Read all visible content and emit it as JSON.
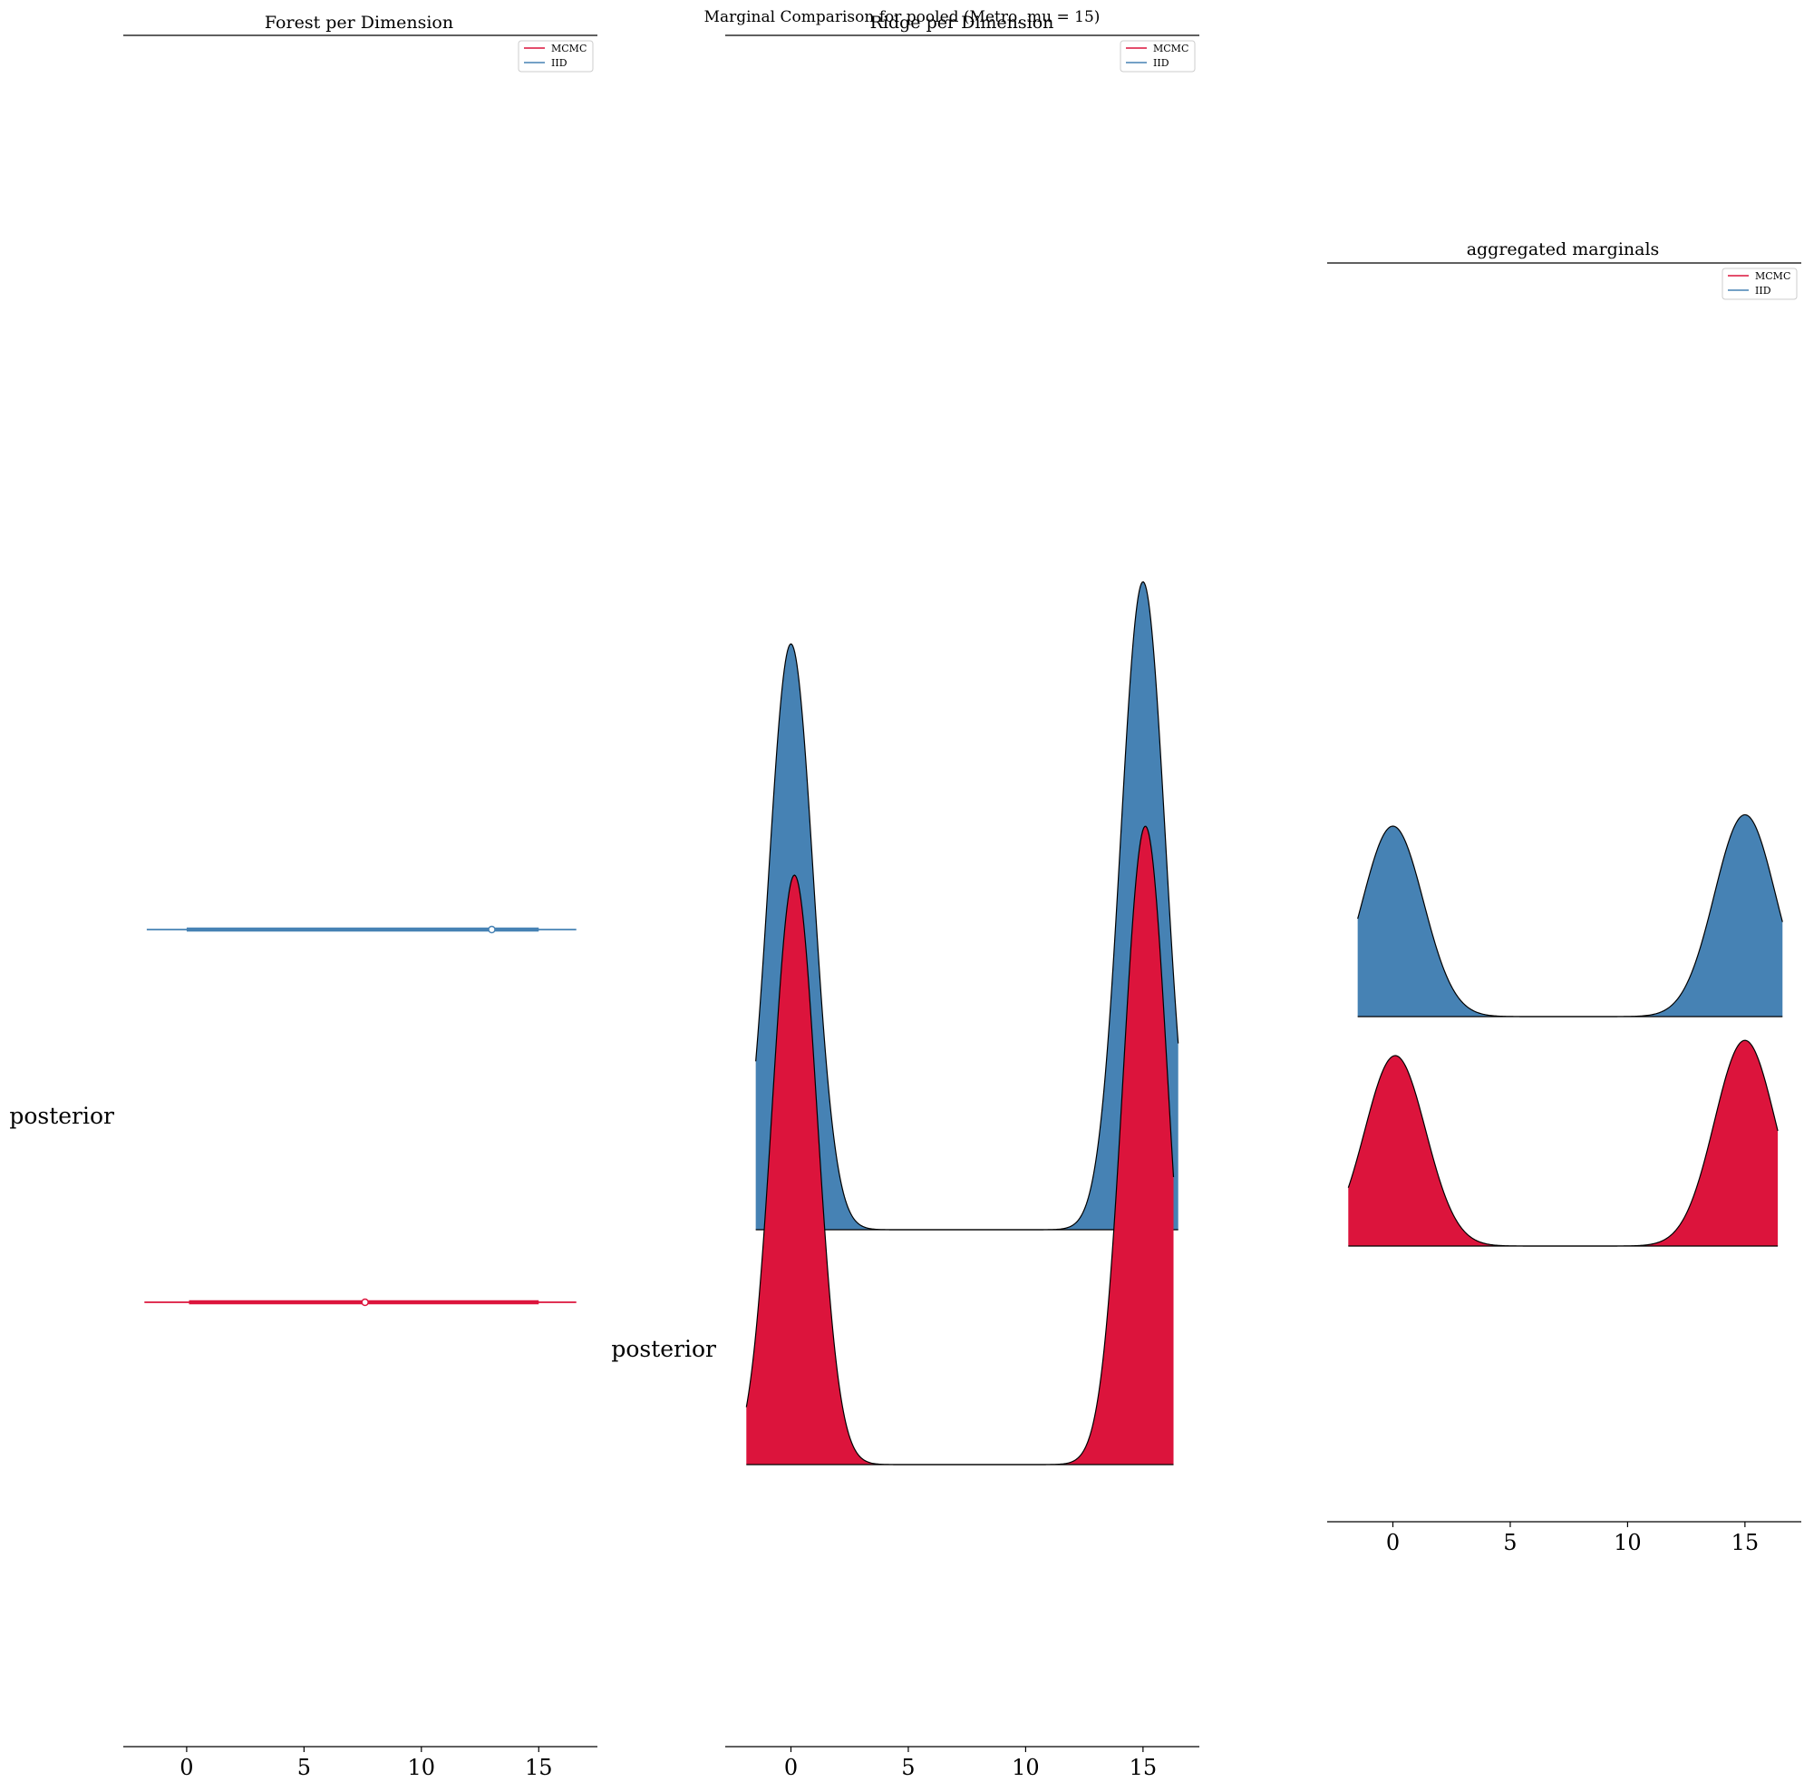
{
  "suptitle": "Marginal Comparison for pooled (Metro, mu = 15)",
  "colors": {
    "mcmc": "#dc143c",
    "iid": "#4682b4",
    "outline": "#000000",
    "axis": "#000000"
  },
  "legend": {
    "mcmc": "MCMC",
    "iid": "IID"
  },
  "chart_data": [
    {
      "type": "forest",
      "title": "Forest per Dimension",
      "ytick_label": "posterior",
      "xlim": [
        -2.7,
        17.5
      ],
      "xticks": [
        0,
        5,
        10,
        15
      ],
      "xtick_labels": [
        "0",
        "5",
        "10",
        "15"
      ],
      "legend_entries": [
        "MCMC",
        "IID"
      ],
      "legend_position": "top-right",
      "series": [
        {
          "name": "IID",
          "row": 1,
          "point": 13.0,
          "hdi_inner": [
            0.0,
            15.0
          ],
          "hdi_outer": [
            -1.7,
            16.6
          ]
        },
        {
          "name": "MCMC",
          "row": 0,
          "point": 7.6,
          "hdi_inner": [
            0.1,
            15.0
          ],
          "hdi_outer": [
            -1.8,
            16.6
          ]
        }
      ]
    },
    {
      "type": "area",
      "title": "Ridge per Dimension",
      "ytick_label": "posterior",
      "xlim": [
        -2.8,
        17.4
      ],
      "xticks": [
        0,
        5,
        10,
        15
      ],
      "xtick_labels": [
        "0",
        "5",
        "10",
        "15"
      ],
      "legend_entries": [
        "MCMC",
        "IID"
      ],
      "legend_position": "top-right",
      "series": [
        {
          "name": "IID",
          "x_range": [
            -1.5,
            16.5
          ],
          "peaks": [
            {
              "mu": 0.0,
              "sigma": 0.95,
              "height": 1.0
            },
            {
              "mu": 15.0,
              "sigma": 0.95,
              "height": 1.106
            }
          ]
        },
        {
          "name": "MCMC",
          "x_range": [
            -1.9,
            16.3
          ],
          "peaks": [
            {
              "mu": 0.15,
              "sigma": 0.95,
              "height": 1.0
            },
            {
              "mu": 15.1,
              "sigma": 0.95,
              "height": 1.083
            }
          ]
        }
      ]
    },
    {
      "type": "area",
      "title": "aggregated marginals",
      "ytick_label": "",
      "xlim": [
        -2.8,
        17.4
      ],
      "xticks": [
        0,
        5,
        10,
        15
      ],
      "xtick_labels": [
        "0",
        "5",
        "10",
        "15"
      ],
      "legend_entries": [
        "MCMC",
        "IID"
      ],
      "legend_position": "top-right",
      "series": [
        {
          "name": "IID",
          "x_range": [
            -1.5,
            16.6
          ],
          "peaks": [
            {
              "mu": 0.0,
              "sigma": 1.3,
              "height": 1.0
            },
            {
              "mu": 15.0,
              "sigma": 1.3,
              "height": 1.06
            }
          ]
        },
        {
          "name": "MCMC",
          "x_range": [
            -1.9,
            16.4
          ],
          "peaks": [
            {
              "mu": 0.1,
              "sigma": 1.3,
              "height": 1.0
            },
            {
              "mu": 15.0,
              "sigma": 1.3,
              "height": 1.08
            }
          ]
        }
      ]
    }
  ]
}
